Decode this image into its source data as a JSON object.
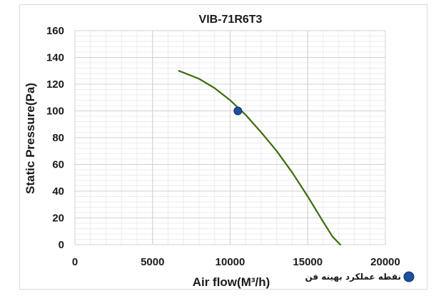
{
  "chart_data": {
    "type": "line",
    "title": "VIB-71R6T3",
    "xlabel": "Air flow(M³/h)",
    "ylabel": "Static Pressure(Pa)",
    "xlim": [
      0,
      20000
    ],
    "ylim": [
      0,
      160
    ],
    "xticks": [
      "0",
      "5000",
      "10000",
      "15000",
      "20000"
    ],
    "yticks": [
      "0",
      "20",
      "40",
      "60",
      "80",
      "100",
      "120",
      "140",
      "160"
    ],
    "grid": true,
    "legend_position": "bottom-right",
    "series": [
      {
        "color": "#3d6b0d",
        "x": [
          6700,
          8000,
          9000,
          10000,
          11000,
          12000,
          13000,
          14000,
          15000,
          16000,
          16600,
          17100
        ],
        "y": [
          130,
          124,
          117,
          108,
          97,
          84,
          70,
          54,
          36,
          17,
          6,
          0
        ]
      }
    ],
    "points": [
      {
        "name": "نقطه عملکرد بهینه فن",
        "x": 10500,
        "y": 100,
        "color": "#1f4e9c"
      }
    ]
  }
}
